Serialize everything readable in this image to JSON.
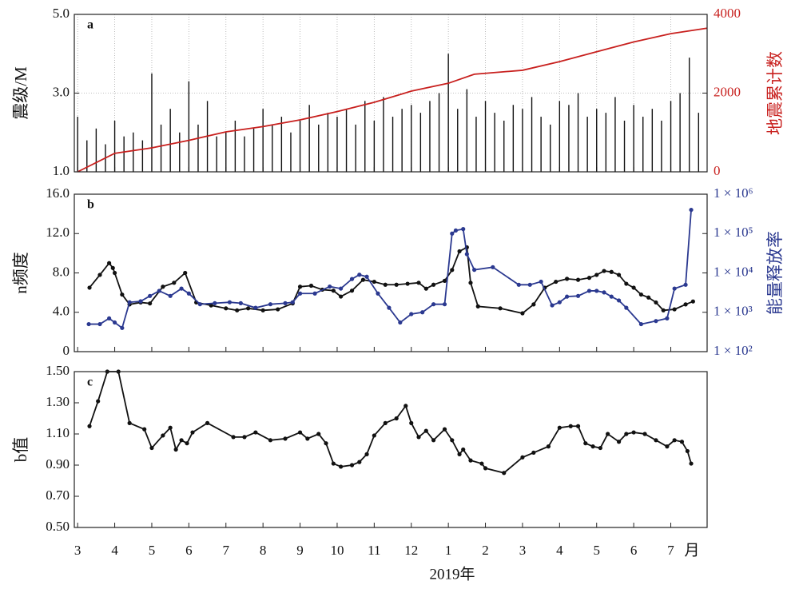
{
  "chart_data": [
    {
      "type": "bar",
      "title": "a",
      "ylabel": "震级/M",
      "y2label": "地震累计数",
      "grid": true,
      "ylim": [
        1,
        5
      ],
      "yticks": [
        {
          "value": 1,
          "label": "1.0"
        },
        {
          "value": 3,
          "label": "3.0"
        },
        {
          "value": 5,
          "label": "5.0"
        }
      ],
      "y2lim": [
        0,
        4000
      ],
      "y2ticks": [
        0,
        2000,
        4000
      ],
      "y2color": "#c8201e",
      "series": [
        {
          "type": "bar",
          "color": "#111",
          "x": [
            0,
            0.25,
            0.5,
            0.75,
            1,
            1.25,
            1.5,
            1.75,
            2,
            2.25,
            2.5,
            2.75,
            3,
            3.25,
            3.5,
            3.75,
            4,
            4.25,
            4.5,
            4.75,
            5,
            5.25,
            5.5,
            5.75,
            6,
            6.25,
            6.5,
            6.75,
            7,
            7.25,
            7.5,
            7.75,
            8,
            8.25,
            8.5,
            8.75,
            9,
            9.25,
            9.5,
            9.75,
            10,
            10.25,
            10.5,
            10.75,
            11,
            11.25,
            11.5,
            11.75,
            12,
            12.25,
            12.5,
            12.75,
            13,
            13.25,
            13.5,
            13.75,
            14,
            14.25,
            14.5,
            14.75,
            15,
            15.25,
            15.5,
            15.75,
            16,
            16.25,
            16.5,
            16.75
          ],
          "values": [
            2.4,
            1.8,
            2.1,
            1.7,
            2.3,
            1.9,
            2.0,
            1.8,
            3.5,
            2.2,
            2.6,
            2.0,
            3.3,
            2.2,
            2.8,
            1.9,
            2.0,
            2.3,
            1.9,
            2.1,
            2.6,
            2.2,
            2.4,
            2.0,
            2.3,
            2.7,
            2.2,
            2.5,
            2.4,
            2.6,
            2.2,
            2.8,
            2.3,
            2.9,
            2.4,
            2.6,
            2.7,
            2.5,
            2.8,
            3.0,
            4.0,
            2.6,
            3.1,
            2.4,
            2.8,
            2.5,
            2.3,
            2.7,
            2.6,
            2.9,
            2.4,
            2.2,
            2.8,
            2.7,
            3.0,
            2.4,
            2.6,
            2.5,
            2.9,
            2.3,
            2.7,
            2.4,
            2.6,
            2.3,
            2.8,
            3.0,
            3.9,
            2.5
          ]
        },
        {
          "type": "line",
          "axis": "y2",
          "color": "#c8201e",
          "x": [
            0,
            1,
            2,
            3,
            4,
            5,
            6,
            7,
            8,
            9,
            10,
            10.7,
            12,
            13,
            14,
            15,
            16,
            16.98
          ],
          "values": [
            0,
            470,
            610,
            800,
            1015,
            1150,
            1320,
            1530,
            1766,
            2050,
            2250,
            2480,
            2580,
            2800,
            3050,
            3300,
            3510,
            3650
          ]
        }
      ]
    },
    {
      "type": "line",
      "title": "b",
      "ylabel": "n频度",
      "y2label": "能量释放率",
      "y2log": true,
      "y2color": "#2b3990",
      "ylim": [
        0,
        16
      ],
      "yticks": [
        0,
        {
          "value": 4,
          "label": "4.0"
        },
        {
          "value": 8,
          "label": "8.0"
        },
        {
          "value": 12,
          "label": "12.0"
        },
        {
          "value": 16,
          "label": "16.0"
        }
      ],
      "y2lim": [
        100,
        1000000
      ],
      "y2ticks": [
        {
          "value": 100,
          "label": "1 × 10²"
        },
        {
          "value": 1000,
          "label": "1 × 10³"
        },
        {
          "value": 10000,
          "label": "1 × 10⁴"
        },
        {
          "value": 100000,
          "label": "1 × 10⁵"
        },
        {
          "value": 1000000,
          "label": "1 × 10⁶"
        }
      ],
      "series": [
        {
          "type": "line",
          "color": "#111",
          "markers": true,
          "x": [
            0.32,
            0.6,
            0.85,
            0.95,
            1.0,
            1.2,
            1.4,
            1.7,
            1.95,
            2.3,
            2.6,
            2.9,
            3.2,
            3.6,
            4.0,
            4.3,
            4.6,
            5.0,
            5.4,
            5.8,
            6.0,
            6.3,
            6.6,
            6.9,
            7.1,
            7.4,
            7.7,
            8.0,
            8.3,
            8.6,
            8.9,
            9.2,
            9.4,
            9.6,
            9.9,
            10.1,
            10.3,
            10.5,
            10.6,
            10.8,
            11.4,
            12.0,
            12.3,
            12.6,
            12.9,
            13.2,
            13.5,
            13.8,
            14.0,
            14.2,
            14.4,
            14.6,
            14.8,
            15.0,
            15.2,
            15.4,
            15.6,
            15.8,
            16.1,
            16.4,
            16.6
          ],
          "values": [
            6.5,
            7.8,
            9.0,
            8.5,
            8.0,
            5.8,
            4.8,
            5.0,
            4.9,
            6.6,
            7.0,
            8.0,
            5.0,
            4.7,
            4.4,
            4.2,
            4.4,
            4.2,
            4.3,
            4.9,
            6.6,
            6.7,
            6.3,
            6.2,
            5.6,
            6.2,
            7.3,
            7.1,
            6.8,
            6.8,
            6.9,
            7.0,
            6.4,
            6.8,
            7.2,
            8.3,
            10.2,
            10.6,
            7.0,
            4.6,
            4.4,
            3.9,
            4.8,
            6.5,
            7.1,
            7.4,
            7.3,
            7.5,
            7.8,
            8.2,
            8.1,
            7.8,
            6.9,
            6.5,
            5.8,
            5.5,
            5.0,
            4.2,
            4.3,
            4.8,
            5.1
          ]
        },
        {
          "type": "line",
          "axis": "y2",
          "color": "#2b3990",
          "markers": true,
          "x": [
            0.3,
            0.6,
            0.85,
            1.0,
            1.2,
            1.4,
            1.7,
            1.95,
            2.2,
            2.5,
            2.8,
            3.0,
            3.3,
            3.7,
            4.1,
            4.4,
            4.8,
            5.2,
            5.6,
            5.8,
            6.0,
            6.4,
            6.8,
            7.1,
            7.4,
            7.6,
            7.8,
            8.1,
            8.4,
            8.7,
            9.0,
            9.3,
            9.6,
            9.9,
            10.1,
            10.2,
            10.4,
            10.5,
            10.7,
            11.2,
            11.9,
            12.2,
            12.5,
            12.8,
            13.0,
            13.2,
            13.5,
            13.8,
            14.0,
            14.2,
            14.4,
            14.6,
            14.8,
            15.2,
            15.6,
            15.9,
            16.1,
            16.4,
            16.55
          ],
          "values": [
            500,
            500,
            700,
            550,
            400,
            1800,
            1900,
            2600,
            3500,
            2600,
            4000,
            3000,
            1600,
            1700,
            1800,
            1700,
            1300,
            1600,
            1700,
            1800,
            3000,
            3000,
            4500,
            4000,
            7000,
            9000,
            8000,
            3000,
            1300,
            550,
            900,
            1000,
            1600,
            1600,
            100000,
            120000,
            130000,
            30000,
            12000,
            14000,
            5000,
            5000,
            6000,
            1500,
            1800,
            2500,
            2600,
            3500,
            3500,
            3200,
            2500,
            2000,
            1300,
            500,
            600,
            700,
            4000,
            5000,
            400000
          ]
        }
      ]
    },
    {
      "type": "line",
      "title": "c",
      "ylabel": "b值",
      "xlabel": "2019年",
      "x_unit_label": "月",
      "ylim": [
        0.5,
        1.5
      ],
      "yticks": [
        {
          "value": 0.5,
          "label": "0.50"
        },
        {
          "value": 0.7,
          "label": "0.70"
        },
        {
          "value": 0.9,
          "label": "0.90"
        },
        {
          "value": 1.1,
          "label": "1.10"
        },
        {
          "value": 1.3,
          "label": "1.30"
        },
        {
          "value": 1.5,
          "label": "1.50"
        }
      ],
      "xlim": [
        -0.09,
        16.98
      ],
      "xticks": [
        {
          "value": 0,
          "label": "3"
        },
        {
          "value": 1,
          "label": "4"
        },
        {
          "value": 2,
          "label": "5"
        },
        {
          "value": 3,
          "label": "6"
        },
        {
          "value": 4,
          "label": "7"
        },
        {
          "value": 5,
          "label": "8"
        },
        {
          "value": 6,
          "label": "9"
        },
        {
          "value": 7,
          "label": "10"
        },
        {
          "value": 8,
          "label": "11"
        },
        {
          "value": 9,
          "label": "12"
        },
        {
          "value": 10,
          "label": "1"
        },
        {
          "value": 11,
          "label": "2"
        },
        {
          "value": 12,
          "label": "3"
        },
        {
          "value": 13,
          "label": "4"
        },
        {
          "value": 14,
          "label": "5"
        },
        {
          "value": 15,
          "label": "6"
        },
        {
          "value": 16,
          "label": "7"
        }
      ],
      "series": [
        {
          "type": "line",
          "color": "#111",
          "markers": true,
          "x": [
            0.32,
            0.55,
            0.8,
            1.1,
            1.4,
            1.8,
            2.0,
            2.3,
            2.5,
            2.65,
            2.8,
            2.95,
            3.1,
            3.5,
            4.2,
            4.5,
            4.8,
            5.2,
            5.6,
            6.0,
            6.2,
            6.5,
            6.7,
            6.9,
            7.1,
            7.4,
            7.6,
            7.8,
            8.0,
            8.3,
            8.6,
            8.85,
            9.0,
            9.2,
            9.4,
            9.6,
            9.9,
            10.1,
            10.3,
            10.4,
            10.6,
            10.9,
            11.0,
            11.5,
            12.0,
            12.3,
            12.7,
            13.0,
            13.3,
            13.5,
            13.7,
            13.9,
            14.1,
            14.3,
            14.6,
            14.8,
            15.0,
            15.3,
            15.6,
            15.9,
            16.1,
            16.3,
            16.45,
            16.55
          ],
          "values": [
            1.15,
            1.31,
            1.5,
            1.5,
            1.17,
            1.13,
            1.01,
            1.09,
            1.14,
            1.0,
            1.06,
            1.04,
            1.11,
            1.17,
            1.08,
            1.08,
            1.11,
            1.06,
            1.07,
            1.11,
            1.07,
            1.1,
            1.04,
            0.91,
            0.89,
            0.9,
            0.92,
            0.97,
            1.09,
            1.17,
            1.2,
            1.28,
            1.17,
            1.08,
            1.12,
            1.06,
            1.13,
            1.06,
            0.97,
            1.0,
            0.93,
            0.91,
            0.88,
            0.85,
            0.95,
            0.98,
            1.02,
            1.14,
            1.15,
            1.15,
            1.04,
            1.02,
            1.01,
            1.1,
            1.05,
            1.1,
            1.11,
            1.1,
            1.06,
            1.02,
            1.06,
            1.05,
            0.99,
            0.91
          ]
        }
      ]
    }
  ]
}
